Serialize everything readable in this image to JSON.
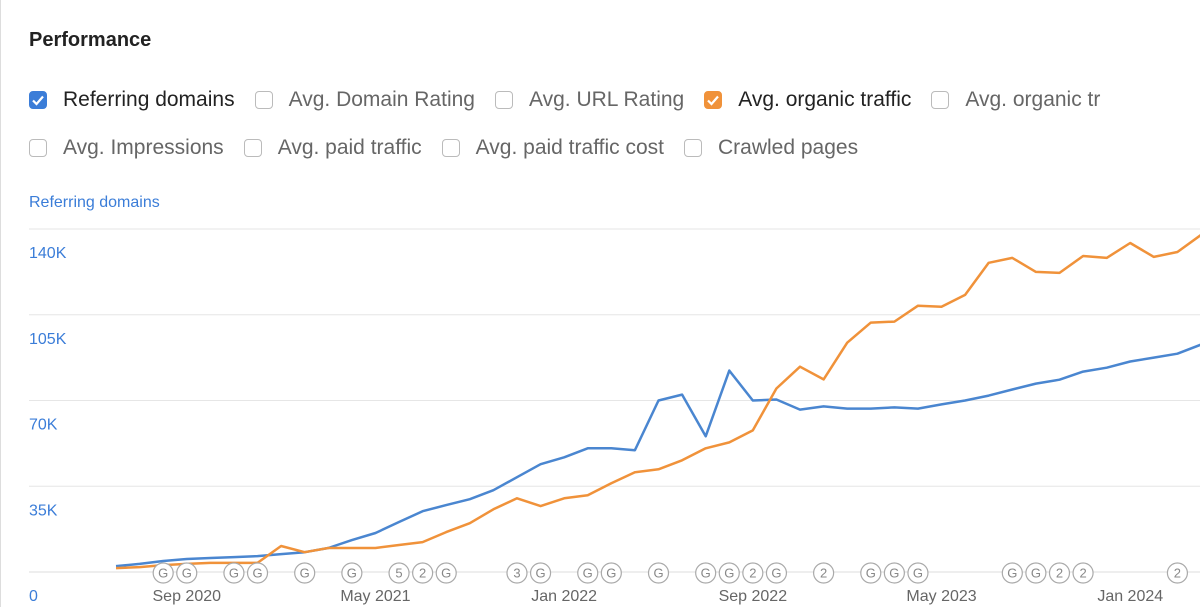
{
  "title": "Performance",
  "checkboxes": [
    [
      {
        "label": "Referring domains",
        "checked": true,
        "color": "#3b7dd8"
      },
      {
        "label": "Avg. Domain Rating",
        "checked": false
      },
      {
        "label": "Avg. URL Rating",
        "checked": false
      },
      {
        "label": "Avg. organic traffic",
        "checked": true,
        "color": "#f0923a"
      },
      {
        "label": "Avg. organic tr",
        "checked": false
      }
    ],
    [
      {
        "label": "Avg. Impressions",
        "checked": false
      },
      {
        "label": "Avg. paid traffic",
        "checked": false
      },
      {
        "label": "Avg. paid traffic cost",
        "checked": false
      },
      {
        "label": "Crawled pages",
        "checked": false
      }
    ]
  ],
  "chart_data": {
    "type": "line",
    "y_axis_label": "Referring domains",
    "x": [
      "2020-06",
      "2020-07",
      "2020-08",
      "2020-09",
      "2020-10",
      "2020-11",
      "2020-12",
      "2021-01",
      "2021-02",
      "2021-03",
      "2021-04",
      "2021-05",
      "2021-06",
      "2021-07",
      "2021-08",
      "2021-09",
      "2021-10",
      "2021-11",
      "2021-12",
      "2022-01",
      "2022-02",
      "2022-03",
      "2022-04",
      "2022-05",
      "2022-06",
      "2022-07",
      "2022-08",
      "2022-09",
      "2022-10",
      "2022-11",
      "2022-12",
      "2023-01",
      "2023-02",
      "2023-03",
      "2023-04",
      "2023-05",
      "2023-06",
      "2023-07",
      "2023-08",
      "2023-09",
      "2023-10",
      "2023-11",
      "2023-12",
      "2024-01",
      "2024-02",
      "2024-03",
      "2024-04"
    ],
    "series": [
      {
        "name": "Referring domains",
        "color": "#4a86d0",
        "values": [
          2400,
          3300,
          4500,
          5300,
          5700,
          6100,
          6500,
          7300,
          8100,
          9800,
          13000,
          15900,
          20400,
          24800,
          27300,
          29700,
          33400,
          38700,
          44000,
          46800,
          50500,
          50500,
          49700,
          70000,
          72400,
          55400,
          82200,
          70000,
          70400,
          66300,
          67600,
          66700,
          66700,
          67200,
          66700,
          68400,
          70000,
          72000,
          74500,
          76900,
          78500,
          81800,
          83400,
          85900,
          87500,
          89100,
          92800
        ]
      },
      {
        "name": "Avg. organic traffic",
        "color": "#f0923a",
        "values": [
          1600,
          2000,
          2800,
          3300,
          3700,
          3700,
          3700,
          10600,
          8100,
          9800,
          9800,
          9800,
          11000,
          12200,
          16300,
          19900,
          25600,
          30100,
          26900,
          30100,
          31300,
          36200,
          40700,
          41900,
          45600,
          50500,
          52900,
          57800,
          74900,
          83800,
          78600,
          93600,
          101800,
          102200,
          108700,
          108300,
          113100,
          126200,
          128200,
          122500,
          122100,
          129000,
          128200,
          134300,
          128600,
          130600,
          137600
        ]
      }
    ],
    "xlim": [
      "2020-06",
      "2024-04"
    ],
    "xticks": [
      {
        "value": "2020-09",
        "label": "Sep 2020"
      },
      {
        "value": "2021-05",
        "label": "May 2021"
      },
      {
        "value": "2022-01",
        "label": "Jan 2022"
      },
      {
        "value": "2022-09",
        "label": "Sep 2022"
      },
      {
        "value": "2023-05",
        "label": "May 2023"
      },
      {
        "value": "2024-01",
        "label": "Jan 2024"
      }
    ],
    "ylim": [
      0,
      140000
    ],
    "yticks": [
      0,
      {
        "value": 35000,
        "label": "35K"
      },
      {
        "value": 70000,
        "label": "70K"
      },
      {
        "value": 105000,
        "label": "105K"
      },
      {
        "value": 140000,
        "label": "140K"
      }
    ],
    "grid": true,
    "annotations": [
      {
        "x": "2020-08",
        "label": "G"
      },
      {
        "x": "2020-09",
        "label": "G"
      },
      {
        "x": "2020-11",
        "label": "G"
      },
      {
        "x": "2020-12",
        "label": "G"
      },
      {
        "x": "2021-02",
        "label": "G"
      },
      {
        "x": "2021-04",
        "label": "G"
      },
      {
        "x": "2021-06",
        "label": "5"
      },
      {
        "x": "2021-07",
        "label": "2"
      },
      {
        "x": "2021-08",
        "label": "G"
      },
      {
        "x": "2021-11",
        "label": "3"
      },
      {
        "x": "2021-12",
        "label": "G"
      },
      {
        "x": "2022-02",
        "label": "G"
      },
      {
        "x": "2022-03",
        "label": "G"
      },
      {
        "x": "2022-05",
        "label": "G"
      },
      {
        "x": "2022-07",
        "label": "G"
      },
      {
        "x": "2022-08",
        "label": "G"
      },
      {
        "x": "2022-09",
        "label": "2"
      },
      {
        "x": "2022-10",
        "label": "G"
      },
      {
        "x": "2022-12",
        "label": "2"
      },
      {
        "x": "2023-02",
        "label": "G"
      },
      {
        "x": "2023-03",
        "label": "G"
      },
      {
        "x": "2023-04",
        "label": "G"
      },
      {
        "x": "2023-08",
        "label": "G"
      },
      {
        "x": "2023-09",
        "label": "G"
      },
      {
        "x": "2023-10",
        "label": "2"
      },
      {
        "x": "2023-11",
        "label": "2"
      },
      {
        "x": "2024-03",
        "label": "2"
      }
    ]
  }
}
